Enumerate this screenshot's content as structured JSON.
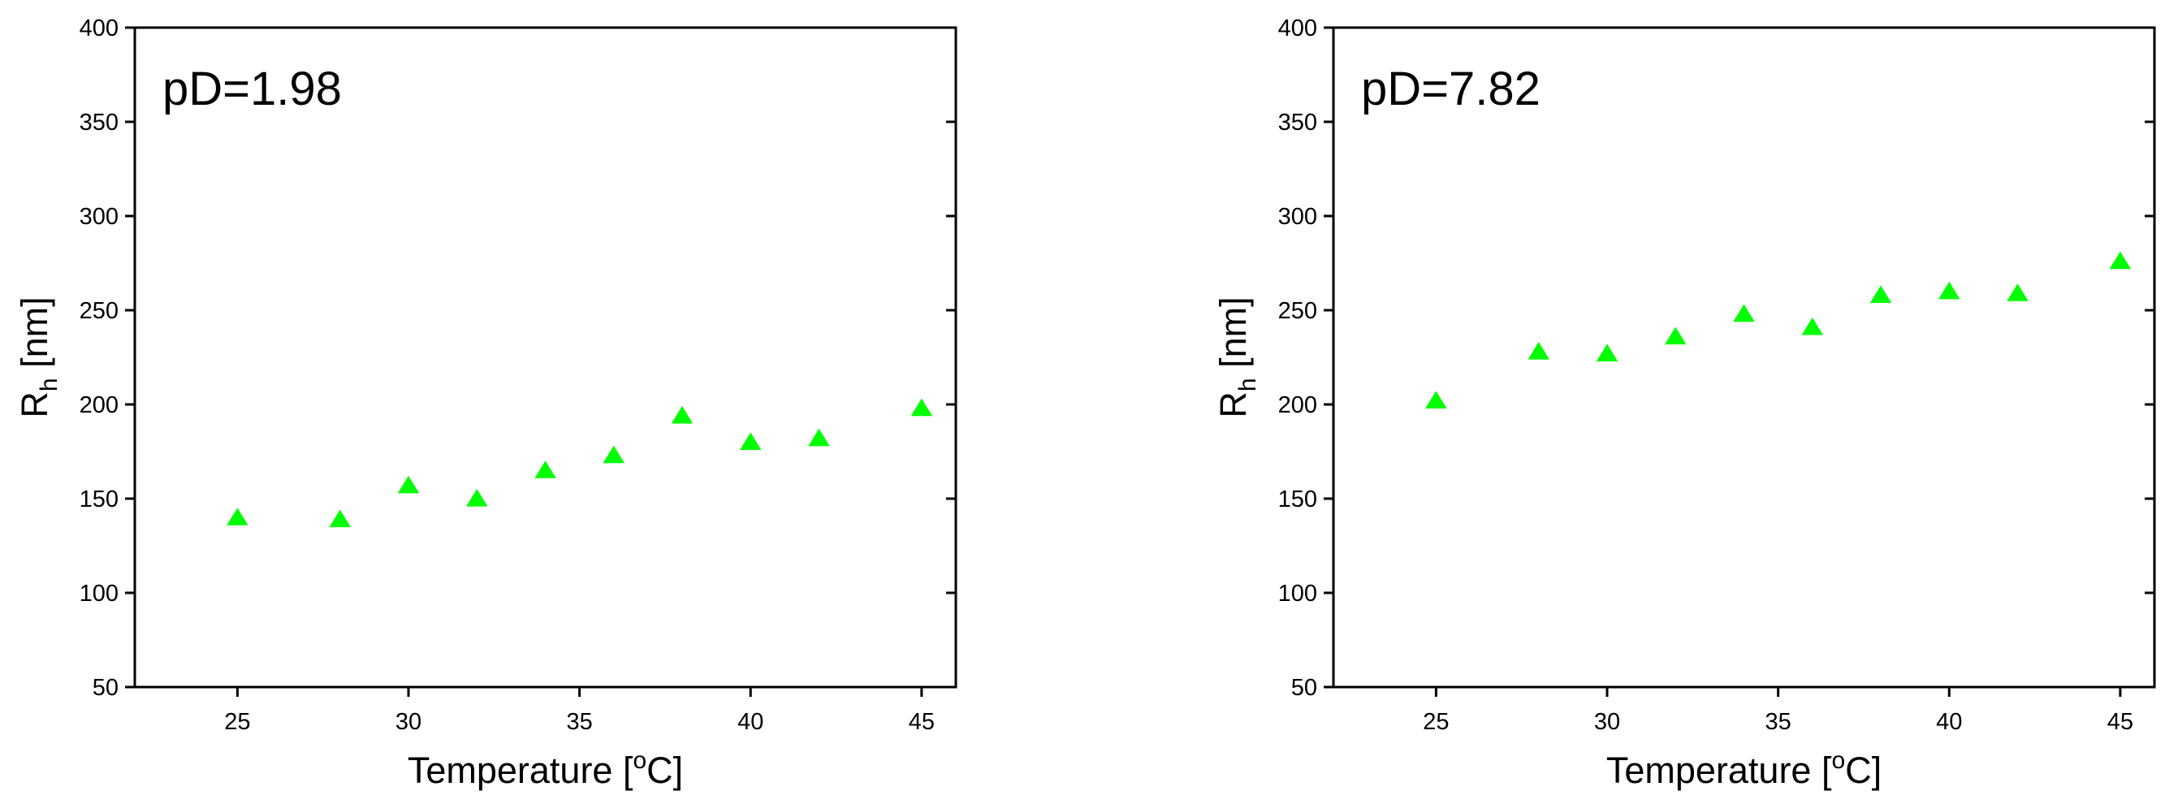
{
  "chart_data": [
    {
      "type": "scatter",
      "annotation": "pD=1.98",
      "xlabel_parts": [
        "Temperature [",
        "o",
        "C]"
      ],
      "ylabel_parts": [
        "R",
        "h",
        " [nm]"
      ],
      "x": [
        25,
        28,
        30,
        32,
        34,
        36,
        38,
        40,
        42,
        45
      ],
      "series": [
        {
          "color": "#00ff00",
          "values": [
            140,
            139,
            157,
            150,
            165,
            173,
            194,
            180,
            182,
            198
          ]
        }
      ],
      "xlim": [
        22,
        46
      ],
      "xticks": [
        25,
        30,
        35,
        40,
        45
      ],
      "ylim": [
        50,
        400
      ],
      "yticks": [
        50,
        100,
        150,
        200,
        250,
        300,
        350,
        400
      ]
    },
    {
      "type": "scatter",
      "annotation": "pD=7.82",
      "xlabel_parts": [
        "Temperature [",
        "o",
        "C]"
      ],
      "ylabel_parts": [
        "R",
        "h",
        " [nm]"
      ],
      "x": [
        25,
        28,
        30,
        32,
        34,
        36,
        38,
        40,
        42,
        45
      ],
      "series": [
        {
          "color": "#00ff00",
          "values": [
            202,
            228,
            227,
            236,
            248,
            241,
            258,
            260,
            259,
            276
          ]
        }
      ],
      "xlim": [
        22,
        46
      ],
      "xticks": [
        25,
        30,
        35,
        40,
        45
      ],
      "ylim": [
        50,
        400
      ],
      "yticks": [
        50,
        100,
        150,
        200,
        250,
        300,
        350,
        400
      ]
    }
  ]
}
